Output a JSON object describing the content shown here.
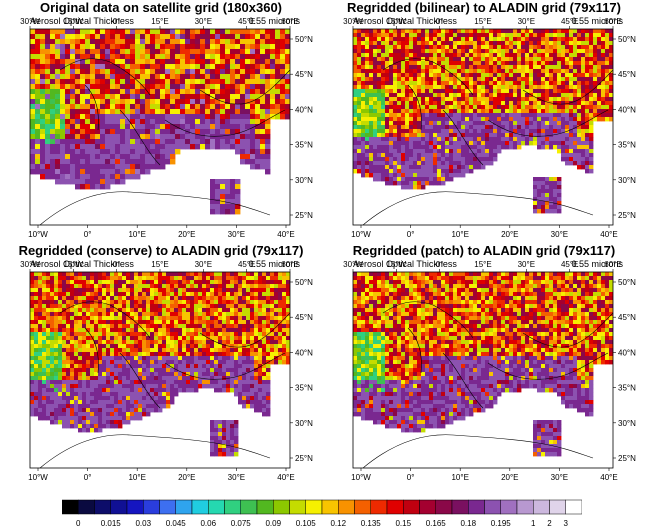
{
  "panels": [
    {
      "title": "Original data on satellite grid (180x360)",
      "variable": "Aerosol Optical Thickness",
      "units": "0.55 microns",
      "top_lon_labels": [
        "30°W",
        "15°W",
        "0°",
        "15°E",
        "30°E",
        "45°E",
        "60°E"
      ],
      "bottom_lon_labels": [
        "10°W",
        "0°",
        "10°E",
        "20°E",
        "30°E",
        "40°E"
      ],
      "lat_labels": [
        "50°N",
        "45°N",
        "40°N",
        "35°N",
        "30°N",
        "25°N"
      ],
      "seed": 11,
      "regrid": "satellite"
    },
    {
      "title": "Regridded (bilinear) to ALADIN grid (79x117)",
      "variable": "Aerosol Optical Thickness",
      "units": "0.55 microns",
      "top_lon_labels": [
        "30°W",
        "15°W",
        "0°",
        "15°E",
        "30°E",
        "45°E",
        "60°E"
      ],
      "bottom_lon_labels": [
        "10°W",
        "0°",
        "10°E",
        "20°E",
        "30°E",
        "40°E"
      ],
      "lat_labels": [
        "50°N",
        "45°N",
        "40°N",
        "35°N",
        "30°N",
        "25°N"
      ],
      "seed": 23,
      "regrid": "bilinear"
    },
    {
      "title": "Regridded (conserve) to ALADIN grid (79x117)",
      "variable": "Aerosol Optical Thickness",
      "units": "0.55 microns",
      "top_lon_labels": [
        "30°W",
        "15°W",
        "0°",
        "15°E",
        "30°E",
        "45°E",
        "60°E"
      ],
      "bottom_lon_labels": [
        "10°W",
        "0°",
        "10°E",
        "20°E",
        "30°E",
        "40°E"
      ],
      "lat_labels": [
        "50°N",
        "45°N",
        "40°N",
        "35°N",
        "30°N",
        "25°N"
      ],
      "seed": 37,
      "regrid": "conserve"
    },
    {
      "title": "Regridded (patch) to ALADIN grid (79x117)",
      "variable": "Aerosol Optical Thickness",
      "units": "0.55 microns",
      "top_lon_labels": [
        "30°W",
        "15°W",
        "0°",
        "15°E",
        "30°E",
        "45°E",
        "60°E"
      ],
      "bottom_lon_labels": [
        "10°W",
        "0°",
        "10°E",
        "20°E",
        "30°E",
        "40°E"
      ],
      "lat_labels": [
        "50°N",
        "45°N",
        "40°N",
        "35°N",
        "30°N",
        "25°N"
      ],
      "seed": 41,
      "regrid": "patch"
    }
  ],
  "colorbar": {
    "labels": [
      "0",
      "0.015",
      "0.03",
      "0.045",
      "0.06",
      "0.075",
      "0.09",
      "0.105",
      "0.12",
      "0.135",
      "0.15",
      "0.165",
      "0.18",
      "0.195",
      "1",
      "2",
      "3"
    ],
    "colors": [
      "#000000",
      "#0a0a40",
      "#0d0d6a",
      "#101094",
      "#1515c0",
      "#2a3ddd",
      "#3d6ff0",
      "#2fa4ee",
      "#20cde0",
      "#25d8b0",
      "#30d080",
      "#3ec052",
      "#52b820",
      "#8cc800",
      "#c4dc00",
      "#f6f000",
      "#f8c400",
      "#f89200",
      "#f46000",
      "#ee2a00",
      "#e00000",
      "#c00010",
      "#a40030",
      "#8a0848",
      "#7a1060",
      "#7a2890",
      "#8c52b0",
      "#a070c0",
      "#b898d0",
      "#ccb8de",
      "#e0d4ea",
      "#ffffff"
    ]
  }
}
